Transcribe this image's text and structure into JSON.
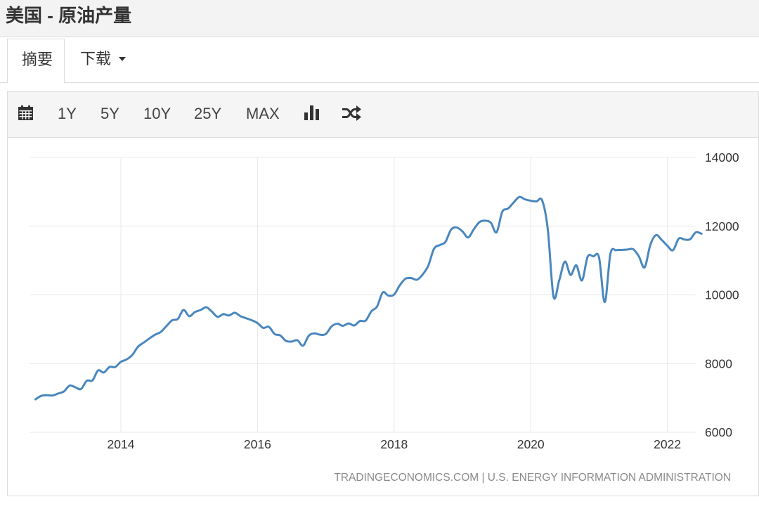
{
  "header": {
    "title": "美国 - 原油产量"
  },
  "tabs": {
    "summary": "摘要",
    "download": "下载"
  },
  "toolbar": {
    "calendar_icon": "calendar-icon",
    "ranges": [
      "1Y",
      "5Y",
      "10Y",
      "25Y",
      "MAX"
    ],
    "bar_chart_icon": "bar-chart-icon",
    "shuffle_icon": "shuffle-icon"
  },
  "colors": {
    "series_line": "#4a87be",
    "gridline": "#e8e8e8"
  },
  "chart_data": {
    "type": "line",
    "x": [
      "2012-10",
      "2012-11",
      "2012-12",
      "2013-01",
      "2013-02",
      "2013-03",
      "2013-04",
      "2013-05",
      "2013-06",
      "2013-07",
      "2013-08",
      "2013-09",
      "2013-10",
      "2013-11",
      "2013-12",
      "2014-01",
      "2014-02",
      "2014-03",
      "2014-04",
      "2014-05",
      "2014-06",
      "2014-07",
      "2014-08",
      "2014-09",
      "2014-10",
      "2014-11",
      "2014-12",
      "2015-01",
      "2015-02",
      "2015-03",
      "2015-04",
      "2015-05",
      "2015-06",
      "2015-07",
      "2015-08",
      "2015-09",
      "2015-10",
      "2015-11",
      "2015-12",
      "2016-01",
      "2016-02",
      "2016-03",
      "2016-04",
      "2016-05",
      "2016-06",
      "2016-07",
      "2016-08",
      "2016-09",
      "2016-10",
      "2016-11",
      "2016-12",
      "2017-01",
      "2017-02",
      "2017-03",
      "2017-04",
      "2017-05",
      "2017-06",
      "2017-07",
      "2017-08",
      "2017-09",
      "2017-10",
      "2017-11",
      "2017-12",
      "2018-01",
      "2018-02",
      "2018-03",
      "2018-04",
      "2018-05",
      "2018-06",
      "2018-07",
      "2018-08",
      "2018-09",
      "2018-10",
      "2018-11",
      "2018-12",
      "2019-01",
      "2019-02",
      "2019-03",
      "2019-04",
      "2019-05",
      "2019-06",
      "2019-07",
      "2019-08",
      "2019-09",
      "2019-10",
      "2019-11",
      "2019-12",
      "2020-01",
      "2020-02",
      "2020-03",
      "2020-04",
      "2020-05",
      "2020-06",
      "2020-07",
      "2020-08",
      "2020-09",
      "2020-10",
      "2020-11",
      "2020-12",
      "2021-01",
      "2021-02",
      "2021-03",
      "2021-04",
      "2021-05",
      "2021-06",
      "2021-07",
      "2021-08",
      "2021-09",
      "2021-10",
      "2021-11",
      "2021-12",
      "2022-01",
      "2022-02",
      "2022-03",
      "2022-04",
      "2022-05",
      "2022-06",
      "2022-07"
    ],
    "series": [
      {
        "values": [
          6960,
          7060,
          7080,
          7070,
          7130,
          7190,
          7360,
          7310,
          7260,
          7500,
          7510,
          7800,
          7740,
          7900,
          7900,
          8050,
          8120,
          8250,
          8490,
          8610,
          8730,
          8840,
          8920,
          9090,
          9260,
          9300,
          9560,
          9380,
          9500,
          9560,
          9640,
          9510,
          9360,
          9440,
          9400,
          9480,
          9380,
          9320,
          9260,
          9180,
          9040,
          9070,
          8860,
          8820,
          8660,
          8640,
          8680,
          8520,
          8810,
          8880,
          8840,
          8860,
          9080,
          9160,
          9100,
          9170,
          9110,
          9240,
          9250,
          9520,
          9660,
          10070,
          9980,
          10010,
          10280,
          10470,
          10490,
          10440,
          10590,
          10850,
          11340,
          11450,
          11540,
          11900,
          11960,
          11850,
          11670,
          11910,
          12120,
          12160,
          12100,
          11820,
          12420,
          12510,
          12690,
          12850,
          12780,
          12740,
          12720,
          12750,
          11900,
          9950,
          10420,
          10970,
          10580,
          10860,
          10420,
          11110,
          11120,
          11090,
          9790,
          11200,
          11300,
          11310,
          11320,
          11330,
          11120,
          10800,
          11450,
          11740,
          11600,
          11430,
          11300,
          11640,
          11610,
          11620,
          11820,
          11780
        ]
      }
    ],
    "ylim": [
      6000,
      14000
    ],
    "yticks": [
      14000,
      12000,
      10000,
      8000,
      6000
    ],
    "xticks": [
      "2014",
      "2016",
      "2018",
      "2020",
      "2022"
    ],
    "grid": true,
    "credits": "TRADINGECONOMICS.COM | U.S. ENERGY INFORMATION ADMINISTRATION"
  }
}
